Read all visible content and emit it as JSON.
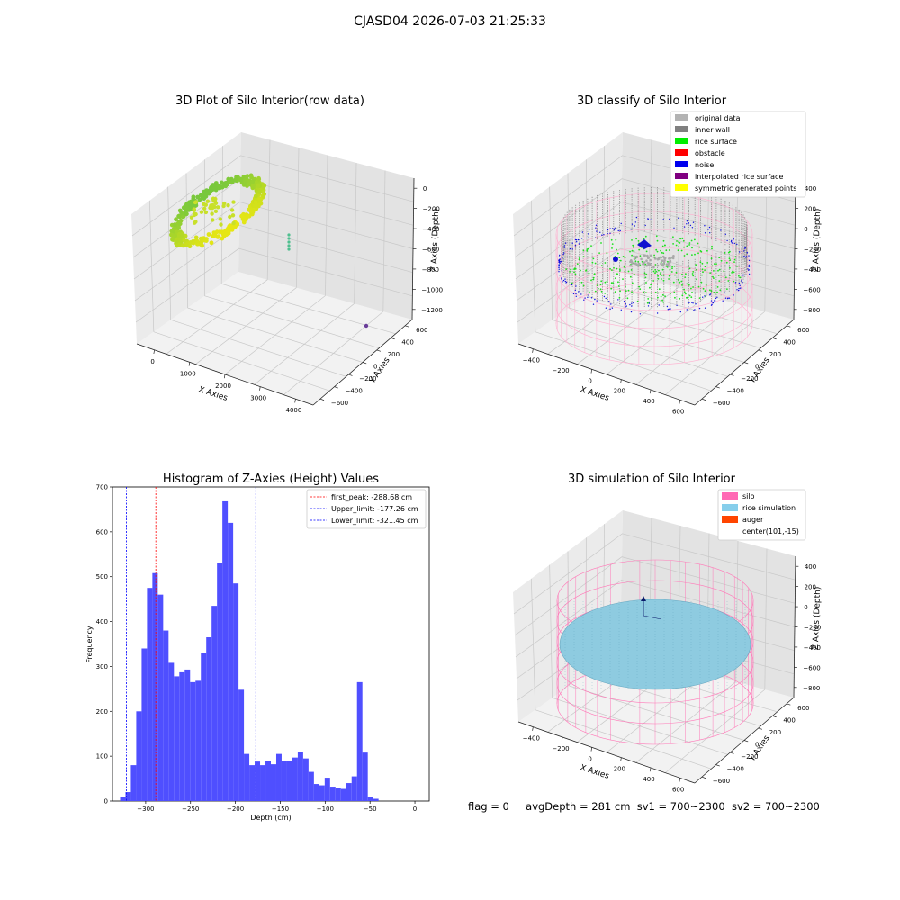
{
  "figure": {
    "suptitle": "CJASD04 2026-07-03 21:25:33",
    "status": {
      "flag": "flag = 0",
      "avg_depth": "avgDepth = 281 cm",
      "sv1": "sv1 = 700~2300",
      "sv2": "sv2 = 700~2300"
    }
  },
  "chart_data": [
    {
      "type": "scatter",
      "projection": "3d",
      "title": "3D Plot of Silo Interior(row data)",
      "xlabel": "X Axies",
      "ylabel": "Y Axies",
      "zlabel": "Z Axies (Depth)",
      "x_ticks": [
        "0",
        "1000",
        "2000",
        "3000",
        "4000"
      ],
      "y_ticks": [
        "600",
        "400",
        "200",
        "0",
        "−200",
        "−400",
        "−600"
      ],
      "z_ticks": [
        "0",
        "−200",
        "−400",
        "−600",
        "−800",
        "−1000",
        "−1200"
      ],
      "xlim": [
        -400,
        4400
      ],
      "ylim": [
        -700,
        700
      ],
      "zlim": [
        -1300,
        100
      ],
      "colormap": "viridis",
      "point_groups": [
        {
          "description": "silo interior point ring",
          "x_range": [
            -400,
            600
          ],
          "y_range": [
            -600,
            600
          ],
          "z_range": [
            -400,
            0
          ]
        },
        {
          "description": "small vertical cluster",
          "x": 1200,
          "y": 200,
          "z_range": [
            -900,
            -700
          ]
        },
        {
          "description": "isolated outlier",
          "x": 4200,
          "y": 500,
          "z": -1200
        }
      ]
    },
    {
      "type": "scatter",
      "projection": "3d",
      "title": "3D classify of Silo Interior",
      "xlabel": "X Axies",
      "ylabel": "Y Axies",
      "zlabel": "Z Axies (Depth)",
      "x_ticks": [
        "−400",
        "−200",
        "0",
        "200",
        "400",
        "600"
      ],
      "y_ticks": [
        "600",
        "400",
        "200",
        "0",
        "−200",
        "−400",
        "−600"
      ],
      "z_ticks": [
        "400",
        "200",
        "0",
        "−200",
        "−400",
        "−600",
        "−800"
      ],
      "legend": [
        {
          "label": "original data",
          "color": "#b3b3b3"
        },
        {
          "label": "inner wall",
          "color": "#808080"
        },
        {
          "label": "rice surface",
          "color": "#00ee00"
        },
        {
          "label": "obstacle",
          "color": "#ff0000"
        },
        {
          "label": "noise",
          "color": "#0000ee"
        },
        {
          "label": "interpolated rice surface",
          "color": "#800080"
        },
        {
          "label": "symmetric generated points",
          "color": "#ffff00"
        }
      ],
      "legend_loc": "upper right",
      "wireframe_color": "#ff9ec8"
    },
    {
      "type": "bar",
      "title": "Histogram of Z-Axies (Height) Values",
      "xlabel": "Depth (cm)",
      "ylabel": "Frequency",
      "xlim": [
        -337,
        16
      ],
      "ylim": [
        0,
        700
      ],
      "x_ticks": [
        -300,
        -250,
        -200,
        -150,
        -100,
        -50,
        0
      ],
      "y_ticks": [
        0,
        100,
        200,
        300,
        400,
        500,
        600,
        700
      ],
      "bar_color": "#4f4fff",
      "bin_start": -328.5,
      "bin_width": 6.0,
      "values": [
        8,
        20,
        80,
        200,
        340,
        475,
        508,
        460,
        380,
        308,
        278,
        287,
        293,
        265,
        268,
        330,
        365,
        435,
        530,
        668,
        620,
        485,
        248,
        105,
        80,
        88,
        80,
        90,
        82,
        105,
        90,
        90,
        97,
        110,
        95,
        65,
        38,
        35,
        52,
        32,
        30,
        27,
        40,
        55,
        265,
        108,
        8,
        5
      ],
      "reference_lines": [
        {
          "label": "first_peak: -288.68 cm",
          "value": -288.68,
          "color": "#ff0000"
        },
        {
          "label": "Upper_limit: -177.26 cm",
          "value": -177.26,
          "color": "#0000ff"
        },
        {
          "label": "Lower_limit: -321.45 cm",
          "value": -321.45,
          "color": "#0000ff"
        }
      ],
      "legend_loc": "upper right"
    },
    {
      "type": "surface",
      "projection": "3d",
      "title": "3D simulation of Silo Interior",
      "xlabel": "X Axies",
      "ylabel": "Y Axies",
      "zlabel": "Z Axies (Depth)",
      "x_ticks": [
        "−400",
        "−200",
        "0",
        "200",
        "400",
        "600"
      ],
      "y_ticks": [
        "600",
        "400",
        "200",
        "0",
        "−200",
        "−400",
        "−600"
      ],
      "z_ticks": [
        "400",
        "200",
        "0",
        "−200",
        "−400",
        "−600",
        "−800"
      ],
      "legend": [
        {
          "label": "silo",
          "color": "#ff69b4"
        },
        {
          "label": "rice simulation",
          "color": "#87ceeb"
        },
        {
          "label": "auger",
          "color": "#ff4500"
        },
        {
          "label": "center(101,-15)",
          "color": "none"
        }
      ],
      "legend_loc": "upper right"
    }
  ]
}
